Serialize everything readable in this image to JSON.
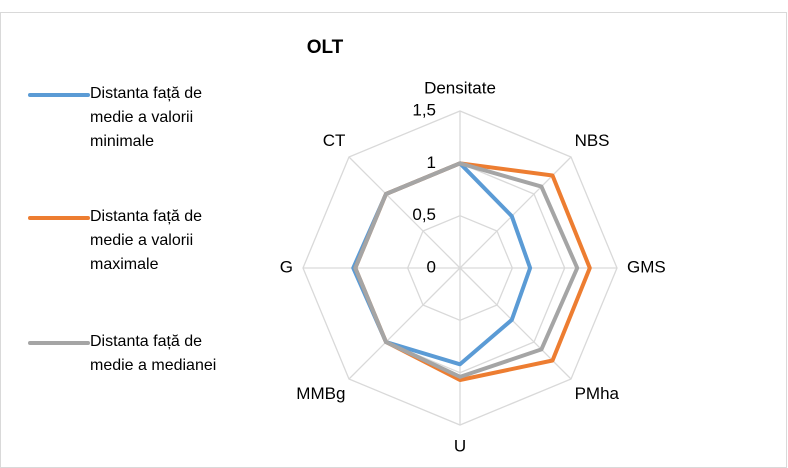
{
  "chart_data": {
    "type": "radar",
    "title": "OLT",
    "categories": [
      "Densitate",
      "NBS",
      "GMS",
      "PMha",
      "U",
      "MMBg",
      "G",
      "CT"
    ],
    "series": [
      {
        "name": "Distanta față de medie a valorii minimale",
        "color": "#5b9bd5",
        "values": [
          1,
          0.7,
          0.67,
          0.7,
          0.92,
          1,
          1.02,
          1
        ]
      },
      {
        "name": "Distanta față de medie a valorii maximale",
        "color": "#ed7d31",
        "values": [
          1,
          1.25,
          1.24,
          1.25,
          1.07,
          1,
          1,
          1
        ]
      },
      {
        "name": "Distanta față de medie a medianei",
        "color": "#a5a5a5",
        "values": [
          1,
          1.1,
          1.12,
          1.1,
          1.04,
          1,
          1,
          1
        ]
      }
    ],
    "ylim": [
      0,
      1.5
    ],
    "yticks": [
      0,
      {
        "value": 0.5,
        "label": "0,5"
      },
      1,
      {
        "value": 1.5,
        "label": "1,5"
      }
    ],
    "grid": true,
    "legend": "left"
  }
}
